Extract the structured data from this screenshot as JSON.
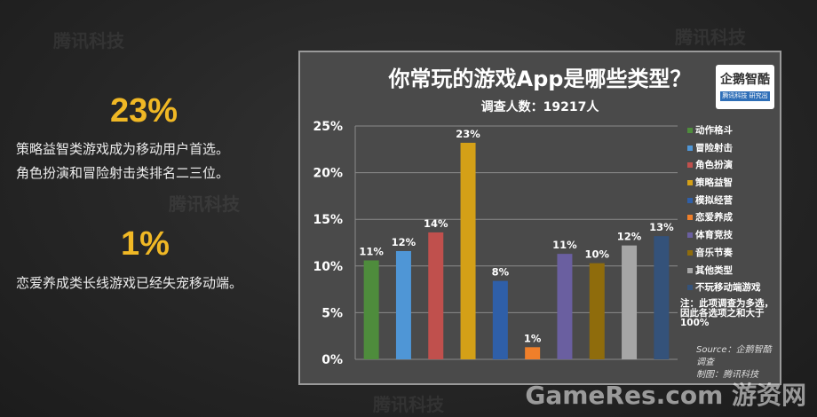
{
  "left_panel": {
    "stat1": {
      "value": "23%",
      "line1": "策略益智类游戏成为移动用户首选。",
      "line2": "角色扮演和冒险射击类排名二三位。"
    },
    "stat2": {
      "value": "1%",
      "line1": "恋爱养成类长线游戏已经失宠移动端。"
    }
  },
  "logo": {
    "text": "企鹅智酷",
    "tagline": "腾讯科技 研究出品"
  },
  "watermarks": {
    "brand": "腾讯科技",
    "site": "GameRes.com 游资网"
  },
  "chart_data": {
    "type": "bar",
    "title": "你常玩的游戏App是哪些类型？",
    "subtitle": "调查人数：19217人",
    "categories": [
      "动作格斗",
      "冒险射击",
      "角色扮演",
      "策略益智",
      "模拟经营",
      "恋爱养成",
      "体育竞技",
      "音乐节奏",
      "其他类型",
      "不玩移动端游戏"
    ],
    "values": [
      11,
      12,
      14,
      23,
      8,
      1,
      11,
      10,
      12,
      13
    ],
    "bar_heights": [
      10.6,
      11.6,
      13.6,
      23.2,
      8.4,
      1.3,
      11.3,
      10.3,
      12.2,
      13.2
    ],
    "data_labels": [
      "11%",
      "12%",
      "14%",
      "23%",
      "8%",
      "1%",
      "11%",
      "10%",
      "12%",
      "13%"
    ],
    "colors": [
      "#4e8c3c",
      "#4f96d6",
      "#c0504d",
      "#d4a017",
      "#2f5fa8",
      "#f07f2a",
      "#6a5fa0",
      "#8f6c0c",
      "#a6a6a6",
      "#34527a"
    ],
    "ylim": [
      0,
      25
    ],
    "yticks": [
      "0%",
      "5%",
      "10%",
      "15%",
      "20%",
      "25%"
    ],
    "grid": true,
    "legend_position": "right",
    "note": "注：此项调查为多选，因此各选项之和大于100%",
    "source": "Source：企鹅智酷调查",
    "made_by": "制图：腾讯科技"
  }
}
